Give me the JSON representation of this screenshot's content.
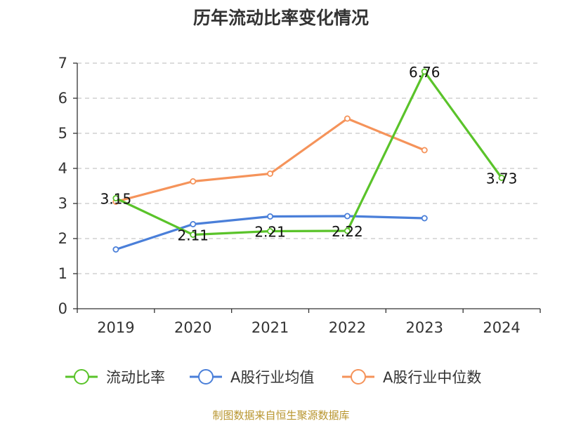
{
  "chart_data": {
    "type": "line",
    "title": "历年流动比率变化情况",
    "categories": [
      "2019",
      "2020",
      "2021",
      "2022",
      "2023",
      "2024"
    ],
    "ylim": [
      0,
      7
    ],
    "yticks": [
      0,
      1,
      2,
      3,
      4,
      5,
      6,
      7
    ],
    "grid": true,
    "legend_position": "bottom",
    "series": [
      {
        "name": "流动比率",
        "color": "#5ac32a",
        "values": [
          3.15,
          2.11,
          2.21,
          2.22,
          6.76,
          3.73
        ],
        "labels": [
          "3.15",
          "2.11",
          "2.21",
          "2.22",
          "6.76",
          "3.73"
        ]
      },
      {
        "name": "A股行业均值",
        "color": "#4a7fd9",
        "values": [
          1.69,
          2.41,
          2.63,
          2.64,
          2.58,
          null
        ]
      },
      {
        "name": "A股行业中位数",
        "color": "#f5935a",
        "values": [
          3.05,
          3.63,
          3.85,
          5.42,
          4.52,
          null
        ]
      }
    ],
    "source": "制图数据来自恒生聚源数据库"
  }
}
